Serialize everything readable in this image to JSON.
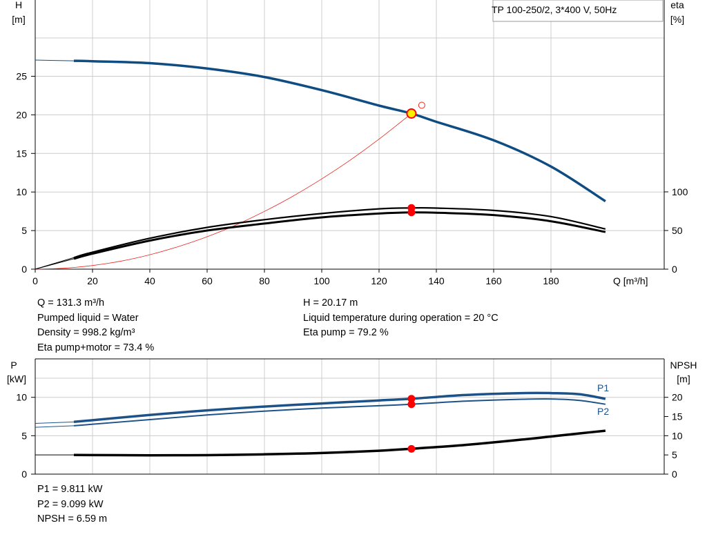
{
  "title_box": "TP 100-250/2, 3*400 V, 50Hz",
  "colors": {
    "head": "#0e4c82",
    "efficiency": "#e8261f",
    "power": "#1d5289",
    "npsh": "#000000",
    "operating_point": "#ff0000",
    "op_fill": "#ffee00",
    "grid": "#cccccc"
  },
  "top_chart": {
    "y_left_label": [
      "H",
      "[m]"
    ],
    "y_right_label": [
      "eta",
      "[%]"
    ],
    "x_label": "Q [m³/h]",
    "x_ticks": [
      "0",
      "20",
      "40",
      "60",
      "80",
      "100",
      "120",
      "140",
      "160",
      "180"
    ],
    "y_left_ticks": [
      "0",
      "5",
      "10",
      "15",
      "20",
      "25"
    ],
    "y_right_ticks": [
      "0",
      "50",
      "100"
    ]
  },
  "bottom_chart": {
    "y_left_label": [
      "P",
      "[kW]"
    ],
    "y_right_label": [
      "NPSH",
      "[m]"
    ],
    "y_left_ticks": [
      "0",
      "5",
      "10"
    ],
    "y_right_ticks": [
      "0",
      "5",
      "10",
      "15",
      "20"
    ],
    "series_labels": [
      "P1",
      "P2"
    ]
  },
  "info_left": [
    "Q = 131.3 m³/h",
    "Pumped liquid = Water",
    "Density = 998.2 kg/m³",
    "Eta pump+motor = 73.4 %"
  ],
  "info_right": [
    "H = 20.17 m",
    "Liquid temperature during operation = 20 °C",
    "Eta pump = 79.2 %"
  ],
  "info_bottom": [
    "P1 = 9.811 kW",
    "P2 = 9.099 kW",
    "NPSH = 6.59 m"
  ],
  "chart_data": [
    {
      "type": "line",
      "xlabel": "Q [m³/h]",
      "xlim": [
        0,
        200
      ],
      "ylim_left": [
        0,
        30
      ],
      "ylim_right": [
        0,
        100
      ],
      "series": [
        {
          "axis": "left",
          "x": [
            0,
            13.5,
            20,
            40,
            60,
            80,
            100,
            120,
            131.3,
            140,
            160,
            180,
            199
          ],
          "values": [
            27.1,
            27.0,
            26.95,
            26.7,
            26.0,
            24.9,
            23.2,
            21.2,
            20.17,
            19.1,
            16.7,
            13.3,
            8.8
          ]
        },
        {
          "name": "Eta pump",
          "axis": "right",
          "x": [
            13.5,
            20,
            40,
            60,
            80,
            100,
            120,
            131.3,
            140,
            160,
            180,
            199
          ],
          "values": [
            15,
            22,
            40,
            54,
            64,
            72,
            78,
            79.2,
            79,
            76,
            68,
            52
          ]
        },
        {
          "name": "Eta pump+motor",
          "axis": "right",
          "x": [
            13.5,
            20,
            40,
            60,
            80,
            100,
            120,
            131.3,
            140,
            160,
            180,
            199
          ],
          "values": [
            13.5,
            20,
            37,
            50,
            59,
            67,
            72,
            73.4,
            73,
            70,
            62,
            48
          ]
        },
        {
          "axis": "left",
          "x": [
            0,
            10,
            20,
            30,
            40,
            50,
            60,
            70,
            80,
            90,
            100,
            110,
            120,
            131.3
          ],
          "values": [
            0,
            0.12,
            0.47,
            1.05,
            1.87,
            2.93,
            4.2,
            5.72,
            7.49,
            9.47,
            11.7,
            14.15,
            16.85,
            20.17
          ]
        }
      ],
      "operating_point": {
        "Q": 131.3,
        "H": 20.17,
        "eta_pump": 79.2,
        "eta_total": 73.4
      }
    },
    {
      "type": "line",
      "xlim": [
        0,
        200
      ],
      "ylim_left": [
        0,
        12.5
      ],
      "ylim_right": [
        0,
        25
      ],
      "series": [
        {
          "name": "P1",
          "axis": "left",
          "x": [
            0,
            13.5,
            40,
            60,
            80,
            100,
            120,
            131.3,
            150,
            170,
            180,
            190,
            199
          ],
          "values": [
            6.6,
            6.8,
            7.7,
            8.3,
            8.8,
            9.2,
            9.6,
            9.811,
            10.3,
            10.55,
            10.55,
            10.4,
            9.8
          ]
        },
        {
          "name": "P2",
          "axis": "left",
          "x": [
            0,
            13.5,
            40,
            60,
            80,
            100,
            120,
            131.3,
            150,
            170,
            180,
            190,
            199
          ],
          "values": [
            6.1,
            6.3,
            7.1,
            7.7,
            8.2,
            8.6,
            8.9,
            9.099,
            9.5,
            9.75,
            9.78,
            9.6,
            9.1
          ]
        },
        {
          "name": "NPSH",
          "axis": "right",
          "x": [
            0,
            13.5,
            40,
            60,
            80,
            100,
            120,
            131.3,
            150,
            170,
            180,
            190,
            199
          ],
          "values": [
            5.0,
            5.0,
            4.9,
            4.95,
            5.15,
            5.5,
            6.1,
            6.59,
            7.6,
            9.0,
            9.8,
            10.6,
            11.3
          ]
        }
      ],
      "operating_point": {
        "Q": 131.3,
        "P1": 9.811,
        "P2": 9.099,
        "NPSH": 6.59
      }
    }
  ]
}
